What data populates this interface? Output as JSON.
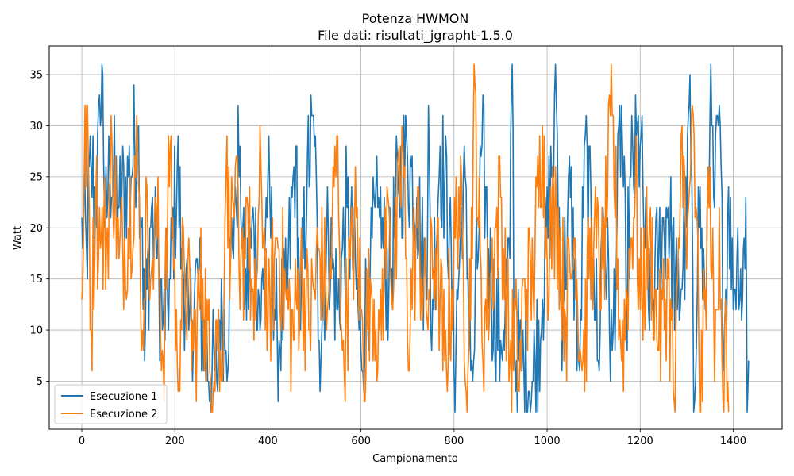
{
  "chart_data": {
    "type": "line",
    "title": "Potenza HWMON",
    "subtitle": "File dati: risultati_jgrapht-1.5.0",
    "xlabel": "Campionamento",
    "ylabel": "Watt",
    "xlim": [
      -70,
      1505
    ],
    "ylim": [
      0.3,
      37.8
    ],
    "xticks": [
      0,
      200,
      400,
      600,
      800,
      1000,
      1200,
      1400
    ],
    "yticks": [
      5,
      10,
      15,
      20,
      25,
      30,
      35
    ],
    "grid": true,
    "legend_position": "bottom-left",
    "series": [
      {
        "name": "Esecuzione 1",
        "color": "#1f77b4",
        "points": [
          [
            0,
            21
          ],
          [
            10,
            18
          ],
          [
            20,
            26
          ],
          [
            30,
            22
          ],
          [
            40,
            30
          ],
          [
            45,
            35
          ],
          [
            50,
            20
          ],
          [
            60,
            26
          ],
          [
            80,
            22
          ],
          [
            100,
            25
          ],
          [
            120,
            29
          ],
          [
            130,
            21
          ],
          [
            135,
            7
          ],
          [
            140,
            14
          ],
          [
            150,
            22
          ],
          [
            160,
            17
          ],
          [
            175,
            11
          ],
          [
            190,
            15
          ],
          [
            205,
            26
          ],
          [
            215,
            18
          ],
          [
            230,
            10
          ],
          [
            250,
            15
          ],
          [
            265,
            8
          ],
          [
            280,
            6
          ],
          [
            290,
            5
          ],
          [
            300,
            15
          ],
          [
            310,
            8
          ],
          [
            320,
            17
          ],
          [
            330,
            24
          ],
          [
            340,
            28
          ],
          [
            350,
            12
          ],
          [
            370,
            20
          ],
          [
            385,
            11
          ],
          [
            400,
            25
          ],
          [
            420,
            9
          ],
          [
            440,
            13
          ],
          [
            460,
            28
          ],
          [
            470,
            10
          ],
          [
            485,
            27
          ],
          [
            500,
            28
          ],
          [
            510,
            9
          ],
          [
            530,
            19
          ],
          [
            550,
            12
          ],
          [
            570,
            22
          ],
          [
            590,
            14
          ],
          [
            600,
            8
          ],
          [
            620,
            17
          ],
          [
            640,
            21
          ],
          [
            660,
            14
          ],
          [
            680,
            24
          ],
          [
            700,
            27
          ],
          [
            720,
            23
          ],
          [
            740,
            14
          ],
          [
            745,
            32
          ],
          [
            750,
            10
          ],
          [
            770,
            28
          ],
          [
            790,
            20
          ],
          [
            800,
            6
          ],
          [
            820,
            25
          ],
          [
            840,
            5
          ],
          [
            860,
            28
          ],
          [
            880,
            14
          ],
          [
            900,
            9
          ],
          [
            920,
            17
          ],
          [
            925,
            36
          ],
          [
            930,
            8
          ],
          [
            950,
            6
          ],
          [
            970,
            5
          ],
          [
            990,
            13
          ],
          [
            1010,
            25
          ],
          [
            1020,
            32
          ],
          [
            1030,
            12
          ],
          [
            1050,
            23
          ],
          [
            1070,
            6
          ],
          [
            1080,
            28
          ],
          [
            1100,
            17
          ],
          [
            1110,
            7
          ],
          [
            1120,
            22
          ],
          [
            1140,
            8
          ],
          [
            1160,
            32
          ],
          [
            1170,
            12
          ],
          [
            1180,
            25
          ],
          [
            1200,
            28
          ],
          [
            1220,
            10
          ],
          [
            1240,
            18
          ],
          [
            1260,
            22
          ],
          [
            1280,
            12
          ],
          [
            1300,
            20
          ],
          [
            1307,
            35
          ],
          [
            1315,
            2
          ],
          [
            1325,
            24
          ],
          [
            1340,
            12
          ],
          [
            1350,
            31
          ],
          [
            1360,
            22
          ],
          [
            1370,
            32
          ],
          [
            1380,
            8
          ],
          [
            1390,
            24
          ],
          [
            1400,
            12
          ],
          [
            1410,
            20
          ],
          [
            1420,
            13
          ],
          [
            1427,
            23
          ],
          [
            1430,
            2
          ],
          [
            1433,
            7
          ]
        ]
      },
      {
        "name": "Esecuzione 2",
        "color": "#ff7f0e",
        "points": [
          [
            0,
            13
          ],
          [
            5,
            25
          ],
          [
            12,
            32
          ],
          [
            20,
            10
          ],
          [
            30,
            23
          ],
          [
            40,
            18
          ],
          [
            55,
            20
          ],
          [
            65,
            28
          ],
          [
            80,
            17
          ],
          [
            100,
            20
          ],
          [
            120,
            28
          ],
          [
            130,
            10
          ],
          [
            140,
            24
          ],
          [
            150,
            16
          ],
          [
            160,
            22
          ],
          [
            175,
            7
          ],
          [
            190,
            28
          ],
          [
            205,
            7
          ],
          [
            220,
            17
          ],
          [
            240,
            8
          ],
          [
            260,
            15
          ],
          [
            275,
            6
          ],
          [
            290,
            11
          ],
          [
            300,
            5
          ],
          [
            310,
            25
          ],
          [
            320,
            18
          ],
          [
            330,
            26
          ],
          [
            340,
            12
          ],
          [
            355,
            23
          ],
          [
            370,
            9
          ],
          [
            385,
            26
          ],
          [
            400,
            10
          ],
          [
            420,
            19
          ],
          [
            440,
            13
          ],
          [
            455,
            9
          ],
          [
            470,
            16
          ],
          [
            490,
            10
          ],
          [
            510,
            18
          ],
          [
            530,
            13
          ],
          [
            550,
            29
          ],
          [
            560,
            8
          ],
          [
            570,
            12
          ],
          [
            590,
            21
          ],
          [
            605,
            7
          ],
          [
            620,
            15
          ],
          [
            640,
            10
          ],
          [
            660,
            22
          ],
          [
            670,
            14
          ],
          [
            690,
            28
          ],
          [
            700,
            9
          ],
          [
            720,
            20
          ],
          [
            740,
            12
          ],
          [
            760,
            18
          ],
          [
            780,
            7
          ],
          [
            795,
            14
          ],
          [
            810,
            24
          ],
          [
            830,
            6
          ],
          [
            845,
            34
          ],
          [
            860,
            9
          ],
          [
            880,
            16
          ],
          [
            900,
            23
          ],
          [
            920,
            7
          ],
          [
            935,
            11
          ],
          [
            940,
            4
          ],
          [
            950,
            15
          ],
          [
            970,
            14
          ],
          [
            990,
            30
          ],
          [
            1000,
            17
          ],
          [
            1020,
            22
          ],
          [
            1040,
            11
          ],
          [
            1060,
            19
          ],
          [
            1075,
            6
          ],
          [
            1090,
            15
          ],
          [
            1100,
            18
          ],
          [
            1120,
            16
          ],
          [
            1130,
            23
          ],
          [
            1140,
            31
          ],
          [
            1160,
            7
          ],
          [
            1180,
            19
          ],
          [
            1190,
            25
          ],
          [
            1200,
            12
          ],
          [
            1220,
            20
          ],
          [
            1240,
            8
          ],
          [
            1260,
            15
          ],
          [
            1275,
            2
          ],
          [
            1290,
            30
          ],
          [
            1300,
            16
          ],
          [
            1310,
            30
          ],
          [
            1320,
            22
          ],
          [
            1330,
            2
          ],
          [
            1340,
            14
          ],
          [
            1350,
            26
          ],
          [
            1360,
            5
          ],
          [
            1370,
            22
          ],
          [
            1380,
            2
          ],
          [
            1385,
            12
          ],
          [
            1390,
            2
          ]
        ]
      }
    ]
  }
}
